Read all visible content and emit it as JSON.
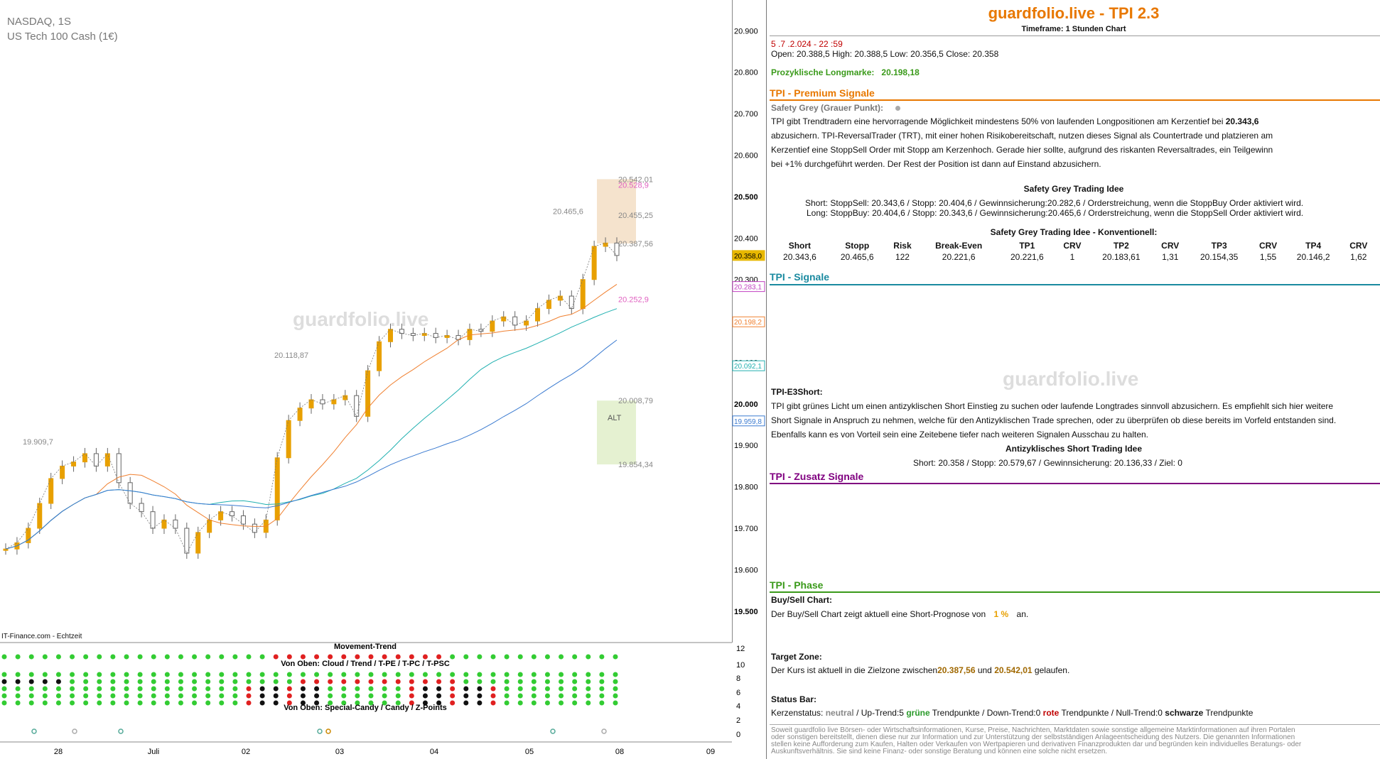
{
  "chart_header": {
    "symbol": "NASDAQ, 1S",
    "instrument": "US Tech 100 Cash (1€)"
  },
  "chart_data": {
    "type": "line",
    "title": "",
    "ylim": [
      19450,
      20940
    ],
    "yticks": [
      20900,
      20800,
      20700,
      20600,
      20500,
      20400,
      20300,
      20200,
      20100,
      20000,
      19900,
      19800,
      19700,
      19600,
      19500
    ],
    "ytick_labels": [
      "20.900",
      "20.800",
      "20.700",
      "20.600",
      "20.500",
      "20.400",
      "20.300",
      "20.200",
      "20.100",
      "20.000",
      "19.900",
      "19.800",
      "19.700",
      "19.600",
      "19.500"
    ],
    "xtick_labels": [
      "28",
      "Juli",
      "02",
      "03",
      "04",
      "05",
      "08",
      "09"
    ],
    "series": [
      {
        "values": [
          19650,
          19665,
          19700,
          19760,
          19820,
          19850,
          19860,
          19880,
          19850,
          19880,
          19810,
          19760,
          19740,
          19700,
          19720,
          19700,
          19640,
          19690,
          19720,
          19740,
          19730,
          19710,
          19690,
          19720,
          19870,
          19960,
          19990,
          20010,
          20000,
          20010,
          20020,
          19970,
          20080,
          20150,
          20180,
          20170,
          20165,
          20170,
          20160,
          20165,
          20155,
          20180,
          20175,
          20200,
          20210,
          20190,
          20200,
          20230,
          20250,
          20260,
          20230,
          20300,
          20380,
          20388,
          20358
        ]
      }
    ],
    "price_labels": [
      {
        "text": "20.542,01",
        "value": 20542
      },
      {
        "text": "20.528,9",
        "value": 20528
      },
      {
        "text": "20.465,6",
        "value": 20465
      },
      {
        "text": "20.455,25",
        "value": 20455
      },
      {
        "text": "20.387,56",
        "value": 20387
      },
      {
        "text": "20.252,9",
        "value": 20252
      },
      {
        "text": "20.118,87",
        "value": 20118
      },
      {
        "text": "20.008,79",
        "value": 20008
      },
      {
        "text": "19.909,7",
        "value": 19909
      },
      {
        "text": "19.854,34",
        "value": 19854
      }
    ],
    "axis_markers": [
      {
        "text": "20.358,0",
        "value": 20358,
        "color": "#e8b800"
      },
      {
        "text": "20.283,1",
        "value": 20283,
        "color": "#c040c0"
      },
      {
        "text": "20.198,2",
        "value": 20198,
        "color": "#f08030"
      },
      {
        "text": "20.092,1",
        "value": 20092,
        "color": "#20b0b0"
      },
      {
        "text": "19.959,8",
        "value": 19959,
        "color": "#3a7ad0"
      }
    ],
    "alt_label": "ALT",
    "source_label": "IT-Finance.com - Echtzeit",
    "watermark": "guardfolio.live"
  },
  "indicator": {
    "title1": "Movement-Trend",
    "title2": "Von Oben: Cloud / Trend / T-PE / T-PC / T-PSC",
    "title3": "Von Oben: Special-Candy / Candy / Z-Points",
    "yticks": [
      "12",
      "10",
      "8",
      "6",
      "4",
      "2",
      "0"
    ]
  },
  "panel": {
    "title": "guardfolio.live - TPI 2.3",
    "timeframe": "Timeframe: 1 Stunden Chart",
    "datetime": "5 .7 .2.024  - 22 :59",
    "ohlc": "Open: 20.388,5     High: 20.388,5     Low:  20.356,5     Close:  20.358",
    "longmarke_label": "Prozyklische Longmarke:",
    "longmarke_value": "20.198,18",
    "premium_title": "TPI - Premium Signale",
    "safety_label": "Safety Grey (Grauer Punkt):",
    "safety_text1": "TPI gibt Trendtradern eine hervorragende Möglichkeit mindestens 50% von laufenden Longpositionen am Kerzentief bei ",
    "safety_value": "20.343,6",
    "safety_text2": "abzusichern. TPI-ReversalTrader (TRT), mit einer hohen Risikobereitschaft, nutzen dieses Signal als Countertrade und platzieren am",
    "safety_text3": "Kerzentief eine StoppSell Order mit Stopp am Kerzenhoch. Gerade hier sollte, aufgrund des riskanten Reversaltrades, ein Teilgewinn",
    "safety_text4": "bei +1% durchgeführt werden. Der Rest der Position ist dann auf Einstand abzusichern.",
    "idee_title": "Safety Grey Trading Idee",
    "idee_short": "Short: StoppSell:  20.343,6 / Stopp: 20.404,6  / Gewinnsicherung:20.282,6  / Orderstreichung, wenn die StoppBuy Order aktiviert wird.",
    "idee_long": "Long: StoppBuy:  20.404,6 / Stopp: 20.343,6  / Gewinnsicherung:20.465,6  / Orderstreichung, wenn die StoppSell Order aktiviert wird.",
    "konv_title": "Safety Grey Trading Idee - Konventionell:",
    "table_headers": [
      "Short",
      "Stopp",
      "Risk",
      "Break-Even",
      "TP1",
      "CRV",
      "TP2",
      "CRV",
      "TP3",
      "CRV",
      "TP4",
      "CRV"
    ],
    "table_values": [
      "20.343,6",
      "20.465,6",
      "122",
      "20.221,6",
      "20.221,6",
      "1",
      "20.183,61",
      "1,31",
      "20.154,35",
      "1,55",
      "20.146,2",
      "1,62"
    ],
    "signale_title": "TPI - Signale",
    "e3_title": "TPI-E3Short:",
    "e3_text1": "TPI gibt grünes Licht um einen antizyklischen Short Einstieg zu suchen oder laufende Longtrades sinnvoll abzusichern. Es empfiehlt sich hier weitere",
    "e3_text2": "Short Signale in Anspruch zu nehmen, welche für den Antizyklischen Trade sprechen, oder zu überprüfen ob diese bereits im Vorfeld entstanden sind.",
    "e3_text3": "Ebenfalls kann es von Vorteil sein eine Zeitebene tiefer nach weiteren Signalen Ausschau zu halten.",
    "anti_title": "Antizyklisches Short Trading Idee",
    "anti_text": "Short:   20.358    / Stopp: 20.579,67 / Gewinnsicherung: 20.136,33 / Ziel:       0",
    "zusatz_title": "TPI - Zusatz Signale",
    "phase_title": "TPI - Phase",
    "buysell_title": "Buy/Sell Chart:",
    "buysell_text1": "Der Buy/Sell Chart zeigt aktuell eine Short-Prognose von ",
    "buysell_value": "1 %",
    "buysell_text2": " an.",
    "target_title": "Target Zone:",
    "target_text1": "Der Kurs ist aktuell in die Zielzone zwischen",
    "target_v1": "20.387,56",
    "target_and": " und ",
    "target_v2": "20.542,01",
    "target_text2": " gelaufen.",
    "status_title": "Status Bar:",
    "status_kerzen": "Kerzenstatus: ",
    "status_neutral": "neutral",
    "status_up": " / Up-Trend:5 ",
    "status_gruene": "grüne",
    "status_tp1": " Trendpunkte  / Down-Trend:0 ",
    "status_rote": "rote",
    "status_tp2": " Trendpunkte / Null-Trend:0 ",
    "status_schwarze": "schwarze",
    "status_tp3": " Trendpunkte",
    "watermark": "guardfolio.live",
    "disclaimer": "Soweit guardfolio live Börsen- oder Wirtschaftsinformationen, Kurse, Preise, Nachrichten, Marktdaten sowie sonstige allgemeine Marktinformationen auf ihren Portalen oder sonstigen bereitstellt, dienen diese nur zur Information und zur Unterstützung der selbstständigen Anlageentscheidung des Nutzers. Die genannten Informationen stellen keine Aufforderung zum Kaufen, Halten oder Verkaufen von Wertpapieren und derivativen Finanzprodukten dar und begründen kein individuelles Beratungs- oder Auskunftsverhältnis. Sie sind keine Finanz- oder sonstige Beratung und können eine solche nicht ersetzen."
  },
  "colors": {
    "orange": "#e87800",
    "teal": "#1a8aa0",
    "purple": "#800080",
    "green": "#3a9a1a",
    "bull": "#e8a000",
    "bear": "#333333"
  }
}
